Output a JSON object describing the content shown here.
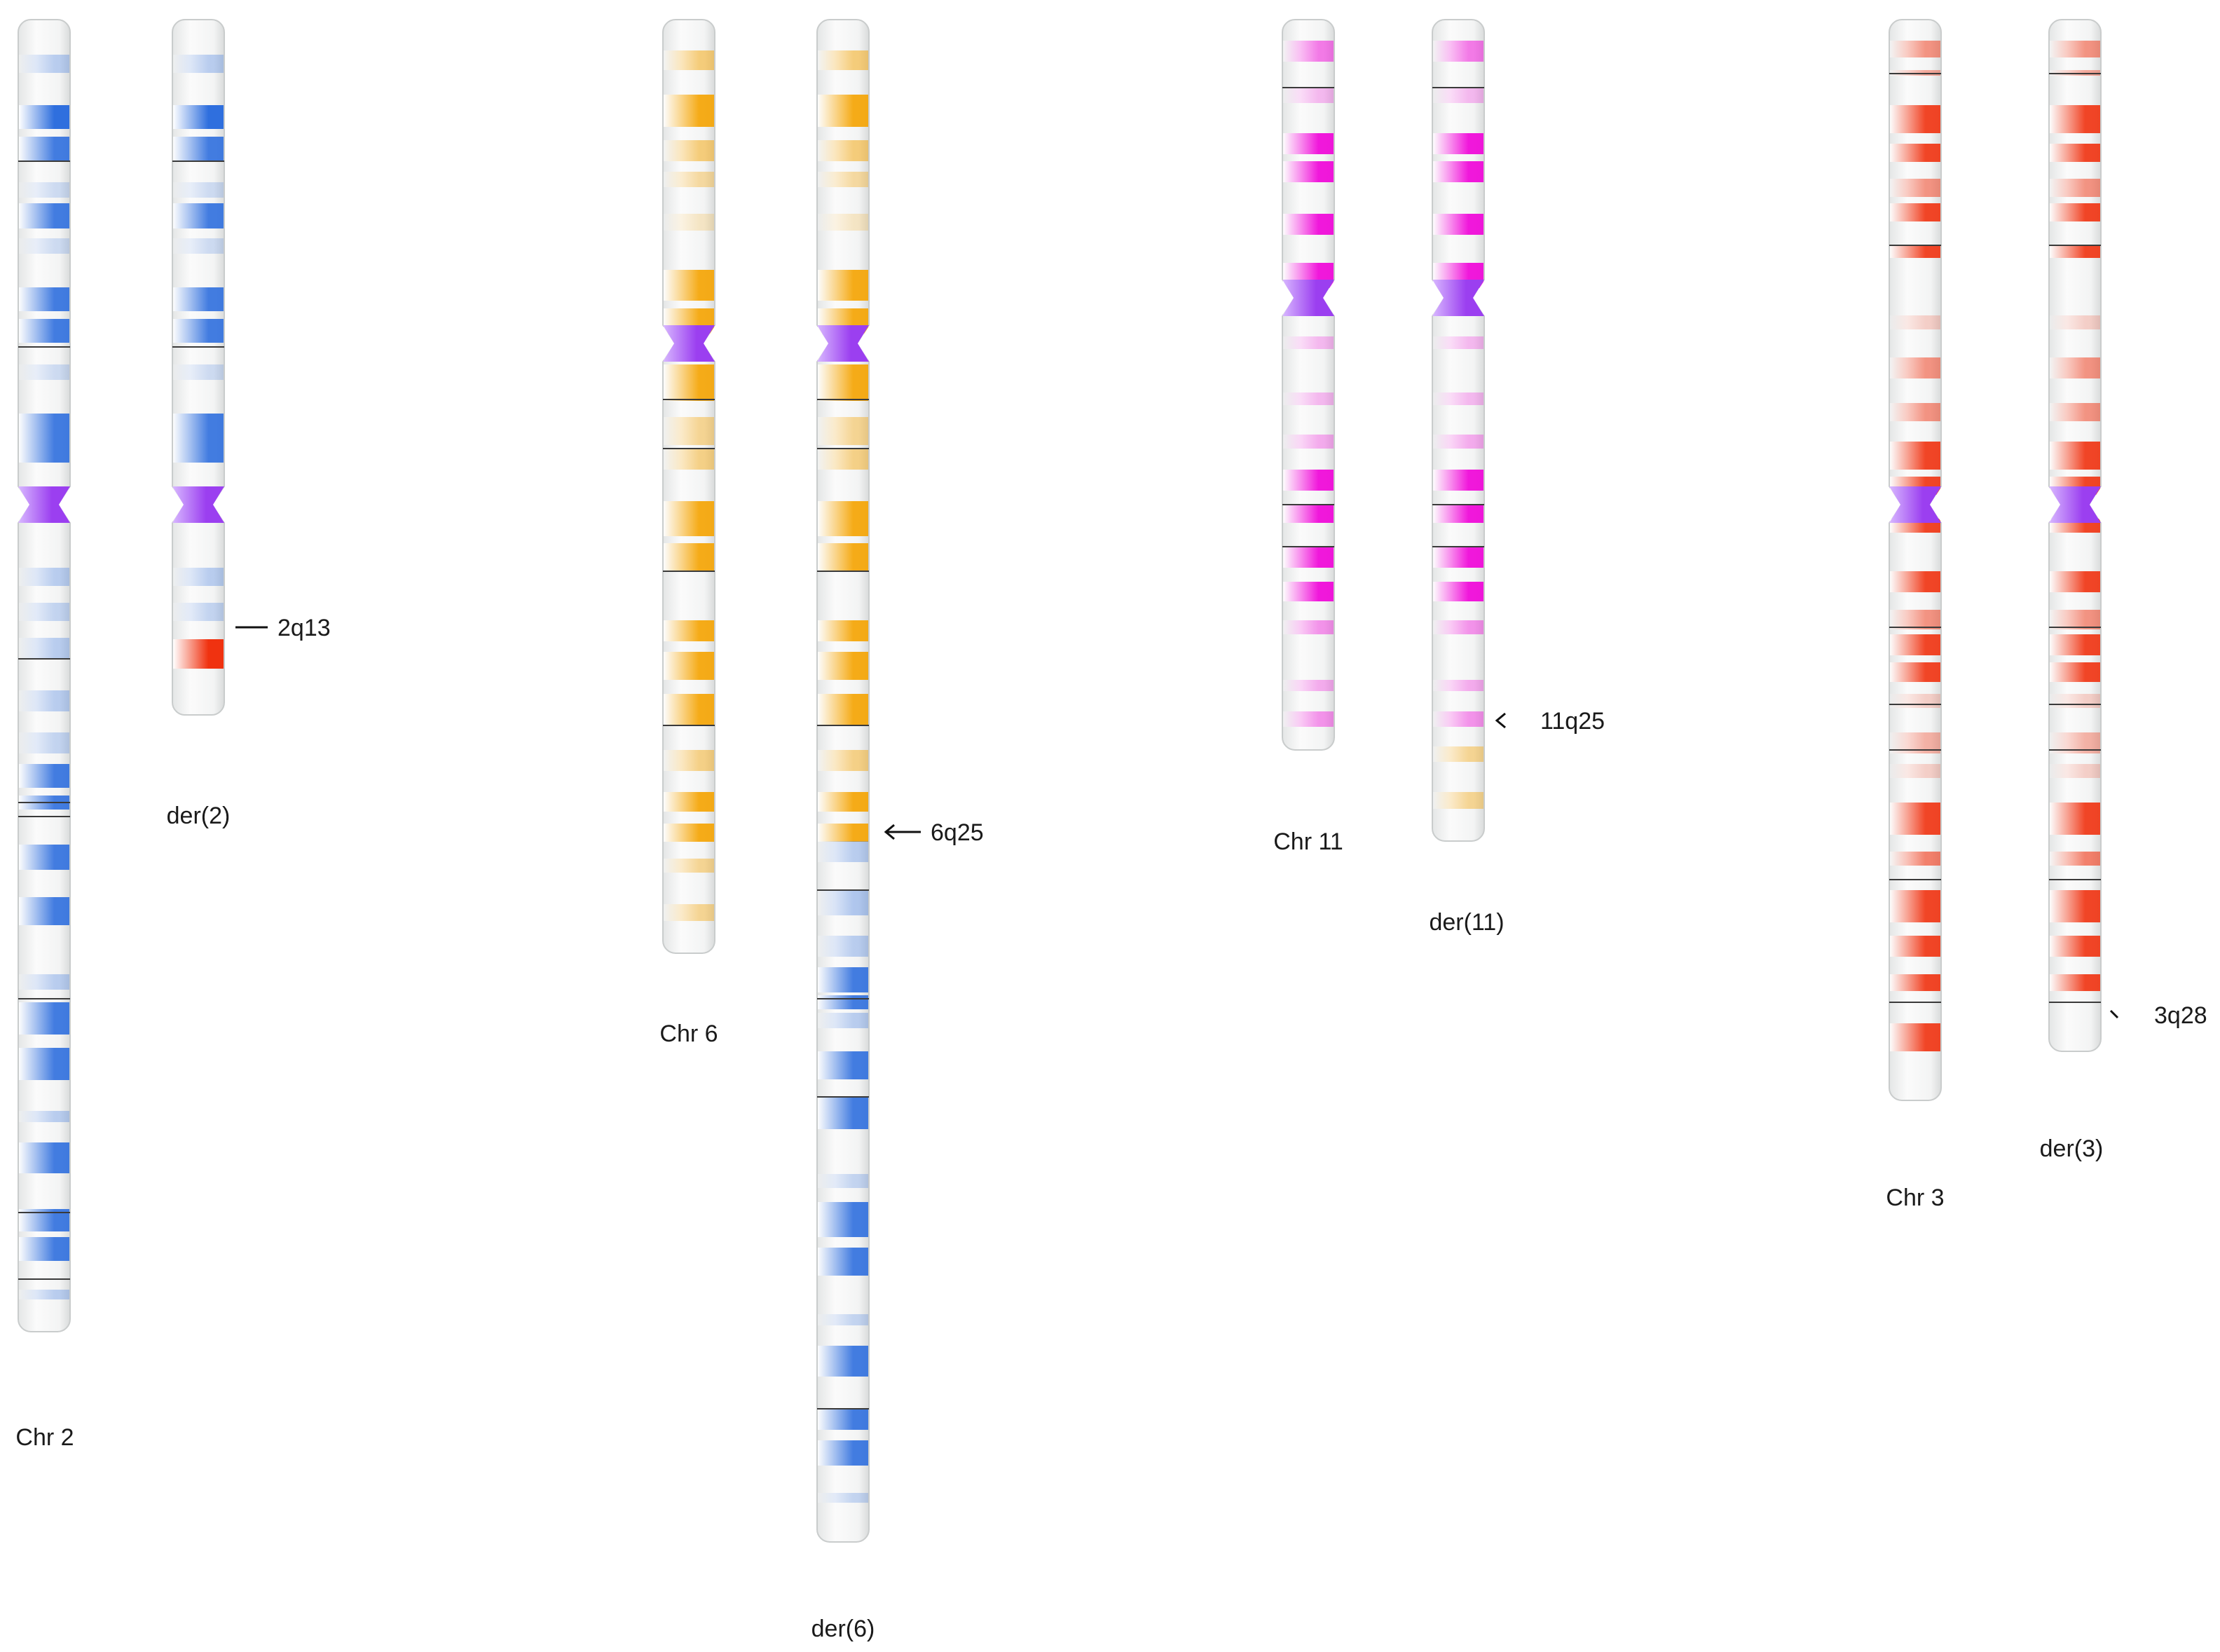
{
  "colors": {
    "chr2": "#2f6fde",
    "chr6": "#f5a300",
    "chr11": "#f000d8",
    "chr3": "#f03210",
    "centromere": "#9b3ff0"
  },
  "pairs": [
    {
      "normal": {
        "label": "Chr 2",
        "color_key": "chr2"
      },
      "derivative": {
        "label": "der(2)",
        "color_key": "chr2",
        "breakpoint": "2q13",
        "marker": "dash"
      }
    },
    {
      "normal": {
        "label": "Chr 6",
        "color_key": "chr6"
      },
      "derivative": {
        "label": "der(6)",
        "color_key": "chr6",
        "breakpoint": "6q25",
        "marker": "arrow"
      }
    },
    {
      "normal": {
        "label": "Chr 11",
        "color_key": "chr11"
      },
      "derivative": {
        "label": "der(11)",
        "color_key": "chr11",
        "breakpoint": "11q25",
        "marker": "arrow"
      }
    },
    {
      "normal": {
        "label": "Chr 3",
        "color_key": "chr3"
      },
      "derivative": {
        "label": "der(3)",
        "color_key": "chr3",
        "breakpoint": "3q28",
        "marker": "tick"
      }
    }
  ]
}
